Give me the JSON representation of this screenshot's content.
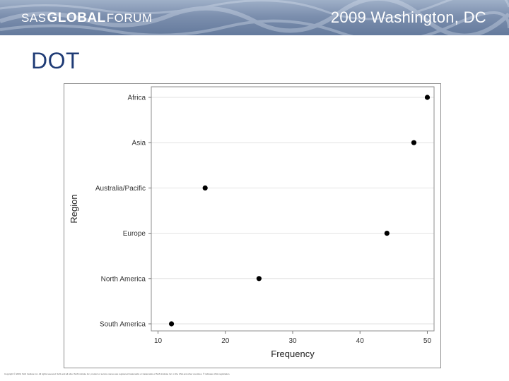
{
  "banner": {
    "brand_sas": "SAS",
    "brand_global": "GLOBAL",
    "brand_forum": "FORUM",
    "event": "2009 Washington, DC"
  },
  "slide": {
    "title": "DOT"
  },
  "footer": {
    "copyright": "Copyright © 2009, SAS Institute Inc. All rights reserved. SAS and all other SAS Institute Inc. product or service names are registered trademarks or trademarks of SAS Institute Inc. in the USA and other countries. ® indicates USA registration."
  },
  "chart_data": {
    "type": "scatter",
    "title": "",
    "xlabel": "Frequency",
    "ylabel": "Region",
    "categories": [
      "Africa",
      "Asia",
      "Australia/Pacific",
      "Europe",
      "North America",
      "South America"
    ],
    "values": [
      50,
      48,
      17,
      44,
      25,
      12
    ],
    "xlim": [
      9,
      51
    ],
    "xticks": [
      10,
      20,
      30,
      40,
      50
    ],
    "grid": true,
    "marker": "filled-circle",
    "color": "#000000",
    "gridline_color": "#e2e2e2",
    "frame_color": "#8e8e8e"
  }
}
